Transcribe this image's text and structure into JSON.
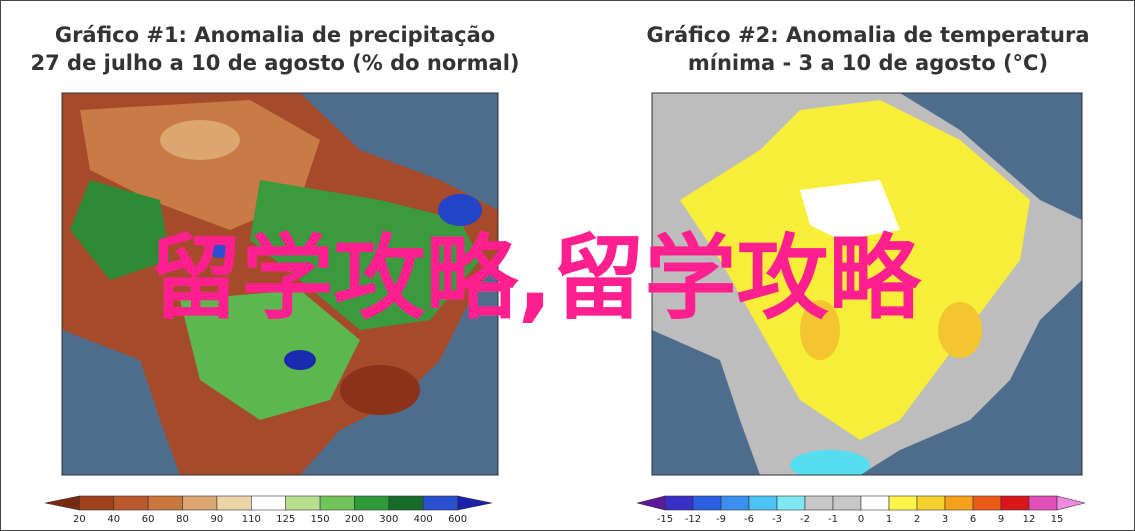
{
  "panels": [
    {
      "title_lines": [
        "Gráfico #1: Anomalia de precipitação",
        "27 de julho a 10 de agosto (% do normal)"
      ],
      "legend": {
        "labels": [
          "20",
          "40",
          "60",
          "80",
          "90",
          "110",
          "125",
          "150",
          "200",
          "300",
          "400",
          "600"
        ],
        "colors": [
          "#7a2a10",
          "#a0411e",
          "#b9592d",
          "#c9773f",
          "#dba672",
          "#ecd3a8",
          "#ffffff",
          "#b6e08f",
          "#72c35a",
          "#2e9a3a",
          "#166b28",
          "#2a4fd0",
          "#1a22a8"
        ]
      }
    },
    {
      "title_lines": [
        "Gráfico #2: Anomalia de temperatura",
        "mínima - 3 a 10 de agosto (°C)"
      ],
      "legend": {
        "labels": [
          "-15",
          "-12",
          "-9",
          "-6",
          "-3",
          "-2",
          "-1",
          "0",
          "1",
          "2",
          "3",
          "6",
          "9",
          "12",
          "15"
        ],
        "colors": [
          "#5a1a9a",
          "#3a2ec8",
          "#2c5ee0",
          "#3a8ff0",
          "#4cc3f5",
          "#7fe8f2",
          "#c8c8c8",
          "#c8c8c8",
          "#ffffff",
          "#fff44a",
          "#f7d22e",
          "#f4a21c",
          "#ea5a14",
          "#d8161a",
          "#e24fb8",
          "#f08ae0"
        ]
      }
    }
  ],
  "overlay": "留学攻略,留学攻略"
}
